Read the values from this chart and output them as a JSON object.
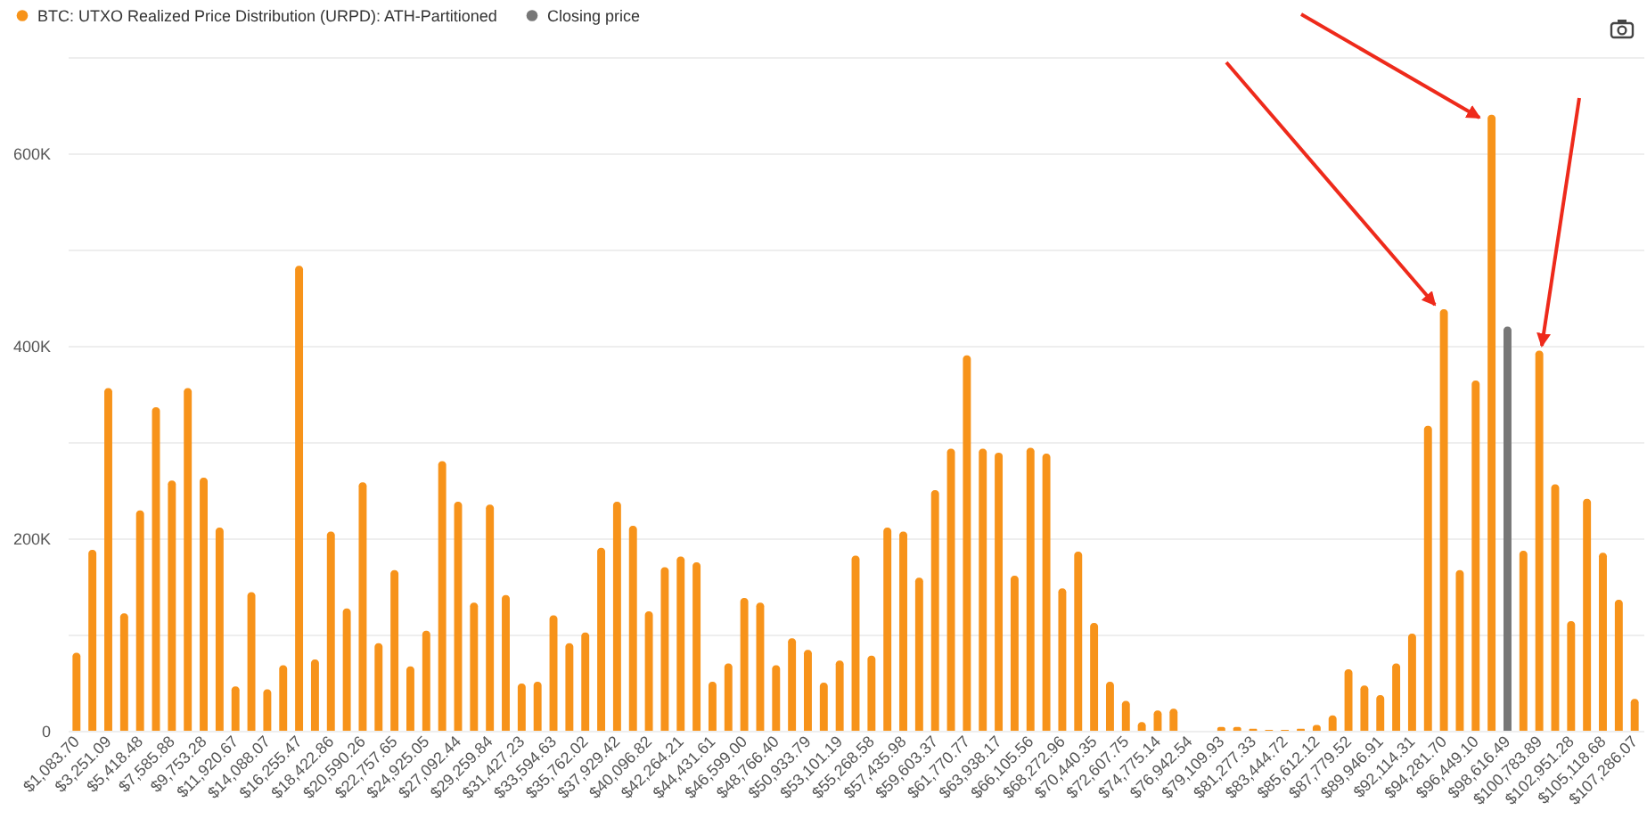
{
  "chart_data": {
    "type": "bar",
    "categories": [
      "$1,083.70",
      null,
      "$3,251.09",
      null,
      "$5,418.48",
      null,
      "$7,585.88",
      null,
      "$9,753.28",
      null,
      "$11,920.67",
      null,
      "$14,088.07",
      null,
      "$16,255.47",
      null,
      "$18,422.86",
      null,
      "$20,590.26",
      null,
      "$22,757.65",
      null,
      "$24,925.05",
      null,
      "$27,092.44",
      null,
      "$29,259.84",
      null,
      "$31,427.23",
      null,
      "$33,594.63",
      null,
      "$35,762.02",
      null,
      "$37,929.42",
      null,
      "$40,096.82",
      null,
      "$42,264.21",
      null,
      "$44,431.61",
      null,
      "$46,599.00",
      null,
      "$48,766.40",
      null,
      "$50,933.79",
      null,
      "$53,101.19",
      null,
      "$55,268.58",
      null,
      "$57,435.98",
      null,
      "$59,603.37",
      null,
      "$61,770.77",
      null,
      "$63,938.17",
      null,
      "$66,105.56",
      null,
      "$68,272.96",
      null,
      "$70,440.35",
      null,
      "$72,607.75",
      null,
      "$74,775.14",
      null,
      "$76,942.54",
      null,
      "$79,109.93",
      null,
      "$81,277.33",
      null,
      "$83,444.72",
      null,
      "$85,612.12",
      null,
      "$87,779.52",
      null,
      "$89,946.91",
      null,
      "$92,114.31",
      null,
      "$94,281.70",
      null,
      "$96,449.10",
      null,
      "$98,616.49",
      null,
      "$100,783.89",
      null,
      "$102,951.28",
      null,
      "$105,118.68",
      null,
      "$107,286.07"
    ],
    "series": [
      {
        "name": "BTC: UTXO Realized Price Distribution (URPD): ATH-Partitioned",
        "color": "#f7931a",
        "values": [
          81000,
          188000,
          356000,
          122000,
          229000,
          336000,
          260000,
          356000,
          263000,
          211000,
          46000,
          144000,
          43000,
          68000,
          483000,
          74000,
          207000,
          127000,
          258000,
          91000,
          167000,
          67000,
          104000,
          280000,
          238000,
          133000,
          235000,
          141000,
          49000,
          51000,
          120000,
          91000,
          102000,
          190000,
          238000,
          213000,
          124000,
          170000,
          181000,
          175000,
          51000,
          70000,
          138000,
          133000,
          68000,
          96000,
          84000,
          50000,
          73000,
          182000,
          78000,
          211000,
          207000,
          159000,
          250000,
          293000,
          390000,
          293000,
          289000,
          161000,
          294000,
          288000,
          148000,
          186000,
          112000,
          51000,
          31000,
          9000,
          21000,
          23000,
          0,
          0,
          4000,
          4000,
          2000,
          1000,
          1000,
          2000,
          6000,
          16000,
          64000,
          47000,
          37000,
          70000,
          101000,
          317000,
          438000,
          167000,
          364000,
          640000,
          null,
          187000,
          395000,
          256000,
          114000,
          241000,
          185000,
          136000,
          33000
        ]
      },
      {
        "name": "Closing price",
        "color": "#777777",
        "values": [
          null,
          null,
          null,
          null,
          null,
          null,
          null,
          null,
          null,
          null,
          null,
          null,
          null,
          null,
          null,
          null,
          null,
          null,
          null,
          null,
          null,
          null,
          null,
          null,
          null,
          null,
          null,
          null,
          null,
          null,
          null,
          null,
          null,
          null,
          null,
          null,
          null,
          null,
          null,
          null,
          null,
          null,
          null,
          null,
          null,
          null,
          null,
          null,
          null,
          null,
          null,
          null,
          null,
          null,
          null,
          null,
          null,
          null,
          null,
          null,
          null,
          null,
          null,
          null,
          null,
          null,
          null,
          null,
          null,
          null,
          null,
          null,
          null,
          null,
          null,
          null,
          null,
          null,
          null,
          null,
          null,
          null,
          null,
          null,
          null,
          null,
          null,
          null,
          null,
          null,
          420000,
          null,
          null,
          null,
          null,
          null,
          null,
          null,
          null
        ]
      }
    ],
    "ylim": [
      0,
      700000
    ],
    "yticks": [
      0,
      {
        "value": 100000,
        "label": null
      },
      {
        "value": 200000,
        "label": "200K"
      },
      {
        "value": 300000,
        "label": null
      },
      {
        "value": 400000,
        "label": "400K"
      },
      {
        "value": 500000,
        "label": null
      },
      {
        "value": 600000,
        "label": "600K"
      },
      {
        "value": 700000,
        "label": null
      }
    ],
    "grid": "y",
    "legend": "top left"
  }
}
